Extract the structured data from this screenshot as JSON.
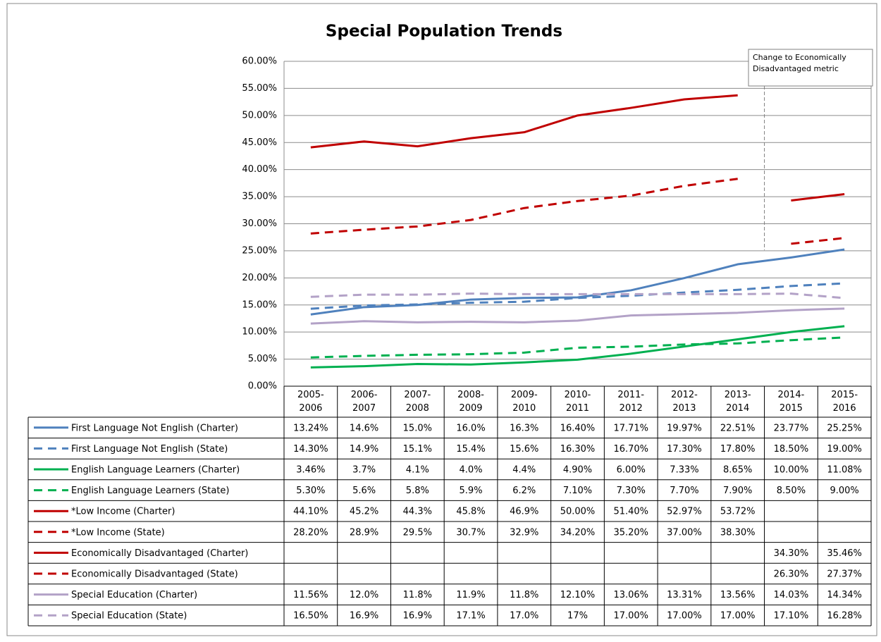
{
  "chart_data": {
    "type": "line",
    "title": "Special Population Trends",
    "annotation": "Change to Economically Disadvantaged metric",
    "categories": [
      "2005-2006",
      "2006-2007",
      "2007-2008",
      "2008-2009",
      "2009-2010",
      "2010-2011",
      "2011-2012",
      "2012-2013",
      "2013-2014",
      "2014-2015",
      "2015-2016"
    ],
    "ylim": [
      0,
      60
    ],
    "yticks": [
      {
        "value": 0,
        "label": "0.00%"
      },
      {
        "value": 5,
        "label": "5.00%"
      },
      {
        "value": 10,
        "label": "10.00%"
      },
      {
        "value": 15,
        "label": "15.00%"
      },
      {
        "value": 20,
        "label": "20.00%"
      },
      {
        "value": 25,
        "label": "25.00%"
      },
      {
        "value": 30,
        "label": "30.00%"
      },
      {
        "value": 35,
        "label": "35.00%"
      },
      {
        "value": 40,
        "label": "40.00%"
      },
      {
        "value": 45,
        "label": "45.00%"
      },
      {
        "value": 50,
        "label": "50.00%"
      },
      {
        "value": 55,
        "label": "55.00%"
      },
      {
        "value": 60,
        "label": "60.00%"
      }
    ],
    "grid": true,
    "series": [
      {
        "name": "First Language Not English (Charter)",
        "color": "#4f81bd",
        "dashed": false,
        "values": [
          13.24,
          14.6,
          15.0,
          16.0,
          16.3,
          16.4,
          17.71,
          19.97,
          22.51,
          23.77,
          25.25
        ],
        "value_labels": [
          "13.24%",
          "14.6%",
          "15.0%",
          "16.0%",
          "16.3%",
          "16.40%",
          "17.71%",
          "19.97%",
          "22.51%",
          "23.77%",
          "25.25%"
        ]
      },
      {
        "name": "First Language Not English (State)",
        "color": "#4f81bd",
        "dashed": true,
        "values": [
          14.3,
          14.9,
          15.1,
          15.4,
          15.6,
          16.3,
          16.7,
          17.3,
          17.8,
          18.5,
          19.0
        ],
        "value_labels": [
          "14.30%",
          "14.9%",
          "15.1%",
          "15.4%",
          "15.6%",
          "16.30%",
          "16.70%",
          "17.30%",
          "17.80%",
          "18.50%",
          "19.00%"
        ]
      },
      {
        "name": "English Language Learners (Charter)",
        "color": "#00b050",
        "dashed": false,
        "values": [
          3.46,
          3.7,
          4.1,
          4.0,
          4.4,
          4.9,
          6.0,
          7.33,
          8.65,
          10.0,
          11.08
        ],
        "value_labels": [
          "3.46%",
          "3.7%",
          "4.1%",
          "4.0%",
          "4.4%",
          "4.90%",
          "6.00%",
          "7.33%",
          "8.65%",
          "10.00%",
          "11.08%"
        ]
      },
      {
        "name": "English Language Learners (State)",
        "color": "#00b050",
        "dashed": true,
        "values": [
          5.3,
          5.6,
          5.8,
          5.9,
          6.2,
          7.1,
          7.3,
          7.7,
          7.9,
          8.5,
          9.0
        ],
        "value_labels": [
          "5.30%",
          "5.6%",
          "5.8%",
          "5.9%",
          "6.2%",
          "7.10%",
          "7.30%",
          "7.70%",
          "7.90%",
          "8.50%",
          "9.00%"
        ]
      },
      {
        "name": "*Low Income (Charter)",
        "color": "#c00000",
        "dashed": false,
        "values": [
          44.1,
          45.2,
          44.3,
          45.8,
          46.9,
          50.0,
          51.4,
          52.97,
          53.72,
          null,
          null
        ],
        "value_labels": [
          "44.10%",
          "45.2%",
          "44.3%",
          "45.8%",
          "46.9%",
          "50.00%",
          "51.40%",
          "52.97%",
          "53.72%",
          null,
          null
        ]
      },
      {
        "name": "*Low Income (State)",
        "color": "#c00000",
        "dashed": true,
        "values": [
          28.2,
          28.9,
          29.5,
          30.7,
          32.9,
          34.2,
          35.2,
          37.0,
          38.3,
          null,
          null
        ],
        "value_labels": [
          "28.20%",
          "28.9%",
          "29.5%",
          "30.7%",
          "32.9%",
          "34.20%",
          "35.20%",
          "37.00%",
          "38.30%",
          null,
          null
        ]
      },
      {
        "name": "Economically Disadvantaged (Charter)",
        "color": "#c00000",
        "dashed": false,
        "values": [
          null,
          null,
          null,
          null,
          null,
          null,
          null,
          null,
          null,
          34.3,
          35.46
        ],
        "value_labels": [
          null,
          null,
          null,
          null,
          null,
          null,
          null,
          null,
          null,
          "34.30%",
          "35.46%"
        ]
      },
      {
        "name": "Economically Disadvantaged (State)",
        "color": "#c00000",
        "dashed": true,
        "values": [
          null,
          null,
          null,
          null,
          null,
          null,
          null,
          null,
          null,
          26.3,
          27.37
        ],
        "value_labels": [
          null,
          null,
          null,
          null,
          null,
          null,
          null,
          null,
          null,
          "26.30%",
          "27.37%"
        ]
      },
      {
        "name": "Special Education (Charter)",
        "color": "#b3a2c7",
        "dashed": false,
        "values": [
          11.56,
          12.0,
          11.8,
          11.9,
          11.8,
          12.1,
          13.06,
          13.31,
          13.56,
          14.03,
          14.34
        ],
        "value_labels": [
          "11.56%",
          "12.0%",
          "11.8%",
          "11.9%",
          "11.8%",
          "12.10%",
          "13.06%",
          "13.31%",
          "13.56%",
          "14.03%",
          "14.34%"
        ]
      },
      {
        "name": "Special Education (State)",
        "color": "#b3a2c7",
        "dashed": true,
        "values": [
          16.5,
          16.9,
          16.9,
          17.1,
          17.0,
          17,
          17.0,
          17.0,
          17.0,
          17.1,
          16.28
        ],
        "value_labels": [
          "16.50%",
          "16.9%",
          "16.9%",
          "17.1%",
          "17.0%",
          "17%",
          "17.00%",
          "17.00%",
          "17.00%",
          "17.10%",
          "16.28%"
        ]
      }
    ]
  }
}
